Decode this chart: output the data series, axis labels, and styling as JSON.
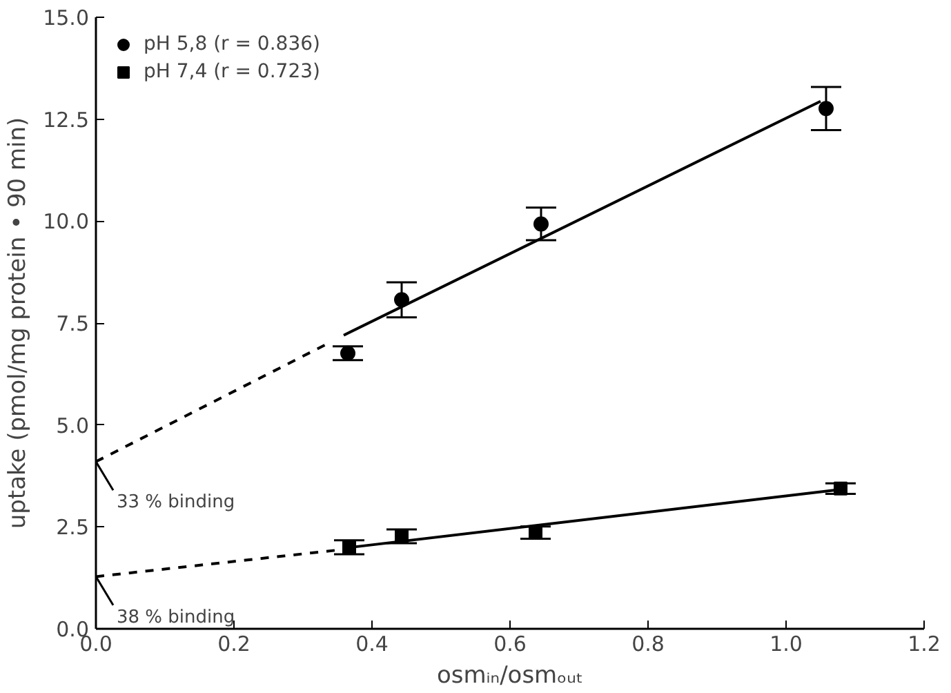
{
  "chart_data": {
    "type": "scatter",
    "xlabel": "osmᵢₙ/osmₒᵤₜ",
    "ylabel": "uptake (pmol/mg protein • 90 min)",
    "xlim": [
      0,
      1.2
    ],
    "ylim": [
      0,
      15
    ],
    "xticks": [
      {
        "value": 0,
        "label": "0.0"
      },
      0.2,
      0.4,
      0.6,
      0.8,
      {
        "value": 1,
        "label": "1.0"
      },
      1.2
    ],
    "yticks": [
      {
        "value": 0,
        "label": "0.0"
      },
      2.5,
      {
        "value": 5,
        "label": "5.0"
      },
      7.5,
      {
        "value": 10,
        "label": "10.0"
      },
      12.5,
      {
        "value": 15,
        "label": "15.0"
      }
    ],
    "grid": false,
    "legend": "top left",
    "series": [
      {
        "name": "pH 5,8 (r = 0.836)",
        "color": "#000000",
        "marker": "circle",
        "x": [
          0.365,
          0.443,
          0.645,
          1.058
        ],
        "values": [
          6.76,
          8.07,
          9.93,
          12.76
        ],
        "errors": [
          0.17,
          0.43,
          0.4,
          0.53
        ]
      },
      {
        "name": "pH 7,4 (r = 0.723)",
        "color": "#000000",
        "marker": "square",
        "x": [
          0.367,
          0.443,
          0.637,
          1.079
        ],
        "values": [
          2.0,
          2.27,
          2.36,
          3.44
        ],
        "errors": [
          0.17,
          0.17,
          0.15,
          0.13
        ]
      },
      {
        "type": "line",
        "color": "#000000",
        "line_style": "solid",
        "x": [
          0.359,
          1.05
        ],
        "values": [
          7.2,
          12.94
        ]
      },
      {
        "type": "line",
        "color": "#000000",
        "line_style": "dashed",
        "x": [
          0,
          0.334
        ],
        "values": [
          4.1,
          6.98
        ]
      },
      {
        "type": "line",
        "color": "#000000",
        "line_style": "solid",
        "x": [
          0.37,
          1.08
        ],
        "values": [
          2.0,
          3.42
        ]
      },
      {
        "type": "line",
        "color": "#000000",
        "line_style": "dashed",
        "x": [
          0,
          0.36
        ],
        "values": [
          1.28,
          1.95
        ]
      }
    ],
    "annotations": [
      {
        "text": "33 % binding",
        "x": 0,
        "y": 4.1
      },
      {
        "text": "38 % binding",
        "x": 0,
        "y": 1.28
      }
    ]
  }
}
